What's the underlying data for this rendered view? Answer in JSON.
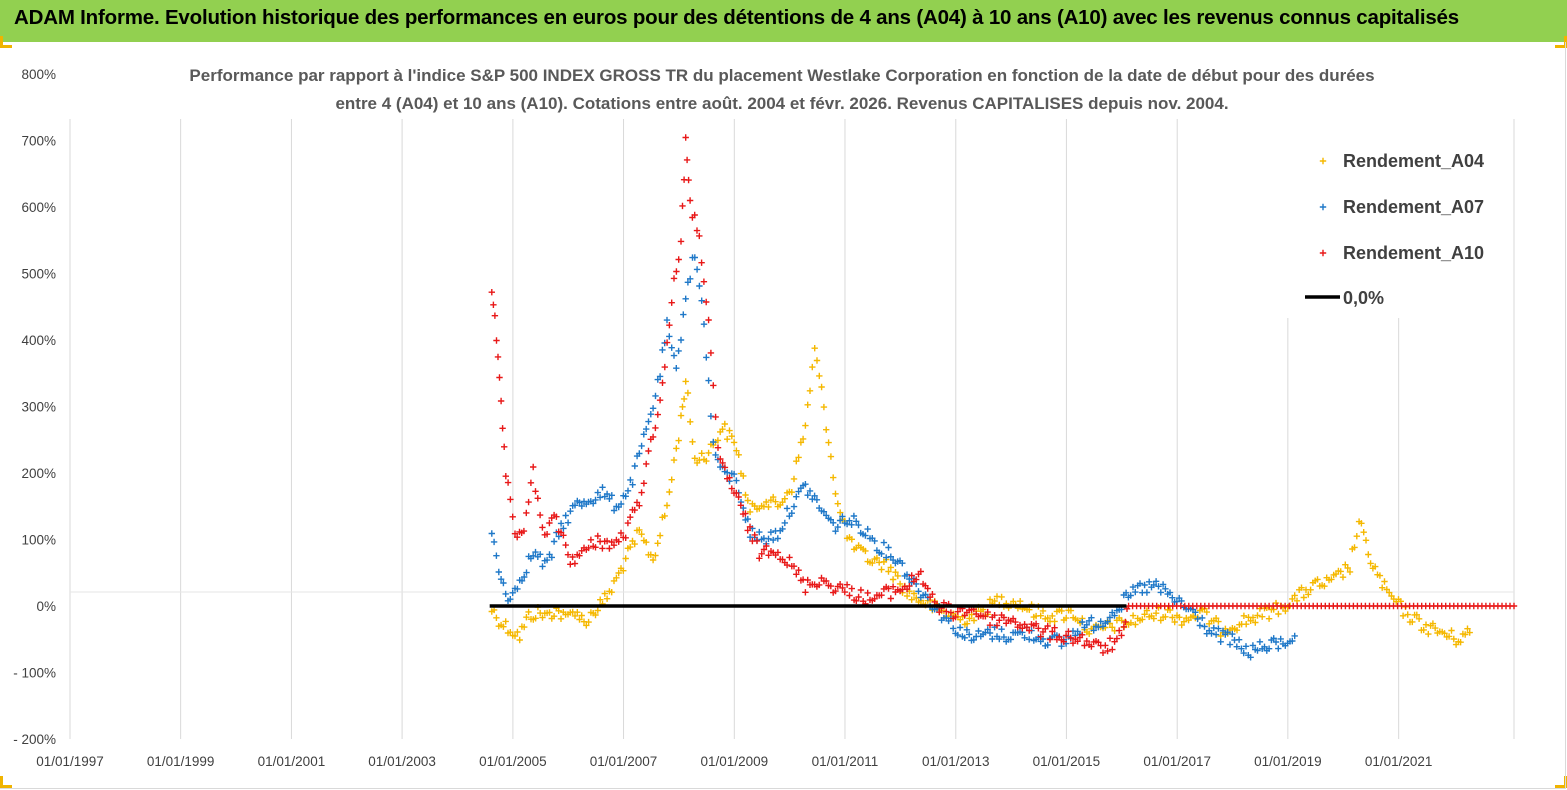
{
  "header": {
    "title": "ADAM Informe. Evolution historique des performances en euros pour des détentions de 4 ans (A04) à 10 ans (A10) avec les revenus connus capitalisés"
  },
  "colors": {
    "banner": "#92d050",
    "corner_marks": "#f0b400",
    "A04": "#f5b800",
    "A07": "#1f78c8",
    "A10": "#e81818",
    "zero_line": "#000000"
  },
  "chart_data": {
    "type": "scatter",
    "title_lines": [
      "Performance par rapport à l'indice S&P 500 INDEX GROSS TR  du placement Westlake Corporation en fonction de la date de début pour des durées",
      "entre 4 (A04) et 10 ans (A10). Cotations entre août. 2004 et févr. 2026. Revenus CAPITALISES depuis nov. 2004."
    ],
    "y_unit": "%",
    "ylim": [
      -200,
      800
    ],
    "y_ticks": [
      "800%",
      "700%",
      "600%",
      "500%",
      "400%",
      "300%",
      "200%",
      "100%",
      "0%",
      "- 100%",
      "- 200%"
    ],
    "y_tick_values": [
      800,
      700,
      600,
      500,
      400,
      300,
      200,
      100,
      0,
      -100,
      -200
    ],
    "xlim": [
      "1997-01-01",
      "2023-02-01"
    ],
    "x_ticks": [
      "01/01/1997",
      "01/01/1999",
      "01/01/2001",
      "01/01/2003",
      "01/01/2005",
      "01/01/2007",
      "01/01/2009",
      "01/01/2011",
      "01/01/2013",
      "01/01/2015",
      "01/01/2017",
      "01/01/2019",
      "01/01/2021"
    ],
    "grid": "vertical",
    "legend_position": "top-right",
    "legend": [
      "Rendement_A04",
      "Rendement_A07",
      "Rendement_A10",
      "0,0%"
    ],
    "series": [
      {
        "name": "Rendement_A04",
        "color": "#f5b800",
        "points": [
          [
            "2004-08-15",
            -5
          ],
          [
            "2004-10-15",
            -25
          ],
          [
            "2004-12-15",
            -35
          ],
          [
            "2005-02-15",
            -45
          ],
          [
            "2005-04-15",
            -15
          ],
          [
            "2005-06-15",
            -10
          ],
          [
            "2005-08-15",
            -15
          ],
          [
            "2005-10-15",
            -5
          ],
          [
            "2005-12-15",
            -20
          ],
          [
            "2006-02-15",
            -5
          ],
          [
            "2006-04-15",
            -25
          ],
          [
            "2006-06-15",
            -10
          ],
          [
            "2006-08-15",
            5
          ],
          [
            "2006-10-15",
            25
          ],
          [
            "2007-01-15",
            70
          ],
          [
            "2007-04-15",
            110
          ],
          [
            "2007-07-15",
            70
          ],
          [
            "2007-10-15",
            150
          ],
          [
            "2008-01-15",
            280
          ],
          [
            "2008-02-15",
            340
          ],
          [
            "2008-04-15",
            220
          ],
          [
            "2008-07-15",
            230
          ],
          [
            "2008-10-15",
            270
          ],
          [
            "2009-01-15",
            240
          ],
          [
            "2009-04-15",
            140
          ],
          [
            "2009-07-15",
            160
          ],
          [
            "2009-10-15",
            150
          ],
          [
            "2010-01-15",
            180
          ],
          [
            "2010-04-15",
            270
          ],
          [
            "2010-06-15",
            385
          ],
          [
            "2010-08-15",
            300
          ],
          [
            "2010-11-15",
            150
          ],
          [
            "2011-02-15",
            90
          ],
          [
            "2011-06-15",
            70
          ],
          [
            "2011-10-15",
            60
          ],
          [
            "2012-02-15",
            20
          ],
          [
            "2012-06-15",
            5
          ],
          [
            "2012-10-15",
            -10
          ],
          [
            "2013-02-15",
            -20
          ],
          [
            "2013-06-15",
            -10
          ],
          [
            "2013-10-15",
            10
          ],
          [
            "2014-02-15",
            5
          ],
          [
            "2014-06-15",
            -10
          ],
          [
            "2014-10-15",
            -15
          ],
          [
            "2015-02-15",
            -10
          ],
          [
            "2015-06-15",
            -40
          ],
          [
            "2015-10-15",
            -30
          ],
          [
            "2016-02-15",
            -25
          ],
          [
            "2016-06-15",
            -15
          ],
          [
            "2016-10-15",
            -10
          ],
          [
            "2017-02-15",
            -20
          ],
          [
            "2017-06-15",
            -10
          ],
          [
            "2017-10-15",
            -35
          ],
          [
            "2018-02-15",
            -25
          ],
          [
            "2018-06-15",
            -15
          ],
          [
            "2018-10-15",
            -5
          ],
          [
            "2019-02-15",
            10
          ],
          [
            "2019-06-15",
            30
          ],
          [
            "2019-10-15",
            35
          ],
          [
            "2020-02-15",
            60
          ],
          [
            "2020-04-15",
            125
          ],
          [
            "2020-07-15",
            60
          ],
          [
            "2020-10-15",
            20
          ],
          [
            "2021-02-15",
            -10
          ],
          [
            "2021-06-15",
            -30
          ],
          [
            "2021-10-15",
            -40
          ],
          [
            "2022-01-15",
            -50
          ],
          [
            "2022-04-15",
            -40
          ]
        ]
      },
      {
        "name": "Rendement_A07",
        "color": "#1f78c8",
        "points": [
          [
            "2004-08-15",
            110
          ],
          [
            "2004-10-15",
            40
          ],
          [
            "2004-12-15",
            10
          ],
          [
            "2005-02-15",
            40
          ],
          [
            "2005-05-15",
            80
          ],
          [
            "2005-08-15",
            60
          ],
          [
            "2005-11-15",
            120
          ],
          [
            "2006-02-15",
            150
          ],
          [
            "2006-05-15",
            160
          ],
          [
            "2006-08-15",
            170
          ],
          [
            "2006-11-15",
            150
          ],
          [
            "2007-02-15",
            180
          ],
          [
            "2007-05-15",
            250
          ],
          [
            "2007-08-15",
            330
          ],
          [
            "2007-10-15",
            420
          ],
          [
            "2007-12-15",
            350
          ],
          [
            "2008-02-15",
            470
          ],
          [
            "2008-04-15",
            530
          ],
          [
            "2008-06-15",
            430
          ],
          [
            "2008-08-15",
            240
          ],
          [
            "2008-10-15",
            200
          ],
          [
            "2009-01-15",
            190
          ],
          [
            "2009-04-15",
            110
          ],
          [
            "2009-07-15",
            100
          ],
          [
            "2009-10-15",
            110
          ],
          [
            "2010-01-15",
            150
          ],
          [
            "2010-04-15",
            180
          ],
          [
            "2010-07-15",
            150
          ],
          [
            "2010-10-15",
            120
          ],
          [
            "2011-01-15",
            130
          ],
          [
            "2011-04-15",
            120
          ],
          [
            "2011-08-15",
            90
          ],
          [
            "2011-12-15",
            70
          ],
          [
            "2012-04-15",
            30
          ],
          [
            "2012-08-15",
            0
          ],
          [
            "2012-12-15",
            -30
          ],
          [
            "2013-04-15",
            -50
          ],
          [
            "2013-08-15",
            -40
          ],
          [
            "2013-12-15",
            -45
          ],
          [
            "2014-04-15",
            -40
          ],
          [
            "2014-08-15",
            -50
          ],
          [
            "2014-12-15",
            -55
          ],
          [
            "2015-04-15",
            -30
          ],
          [
            "2015-08-15",
            -25
          ],
          [
            "2015-12-15",
            0
          ],
          [
            "2016-04-15",
            25
          ],
          [
            "2016-08-15",
            30
          ],
          [
            "2016-12-15",
            10
          ],
          [
            "2017-04-15",
            -10
          ],
          [
            "2017-08-15",
            -40
          ],
          [
            "2017-12-15",
            -50
          ],
          [
            "2018-04-15",
            -70
          ],
          [
            "2018-08-15",
            -60
          ],
          [
            "2018-12-15",
            -55
          ],
          [
            "2019-02-15",
            -45
          ]
        ]
      },
      {
        "name": "Rendement_A10",
        "color": "#e81818",
        "points": [
          [
            "2004-08-15",
            480
          ],
          [
            "2004-09-15",
            400
          ],
          [
            "2004-10-15",
            300
          ],
          [
            "2004-11-15",
            200
          ],
          [
            "2005-01-15",
            100
          ],
          [
            "2005-03-15",
            120
          ],
          [
            "2005-05-15",
            200
          ],
          [
            "2005-07-15",
            110
          ],
          [
            "2005-10-15",
            130
          ],
          [
            "2006-01-15",
            70
          ],
          [
            "2006-04-15",
            80
          ],
          [
            "2006-07-15",
            100
          ],
          [
            "2006-10-15",
            90
          ],
          [
            "2007-01-15",
            110
          ],
          [
            "2007-04-15",
            160
          ],
          [
            "2007-07-15",
            260
          ],
          [
            "2007-09-15",
            330
          ],
          [
            "2007-11-15",
            460
          ],
          [
            "2008-01-15",
            550
          ],
          [
            "2008-02-15",
            700
          ],
          [
            "2008-03-15",
            600
          ],
          [
            "2008-05-15",
            560
          ],
          [
            "2008-07-15",
            420
          ],
          [
            "2008-09-15",
            230
          ],
          [
            "2008-12-15",
            180
          ],
          [
            "2009-03-15",
            130
          ],
          [
            "2009-06-15",
            80
          ],
          [
            "2009-09-15",
            90
          ],
          [
            "2010-01-15",
            60
          ],
          [
            "2010-04-15",
            30
          ],
          [
            "2010-07-15",
            40
          ],
          [
            "2010-10-15",
            30
          ],
          [
            "2011-02-15",
            20
          ],
          [
            "2011-06-15",
            10
          ],
          [
            "2011-10-15",
            20
          ],
          [
            "2012-02-15",
            30
          ],
          [
            "2012-05-15",
            50
          ],
          [
            "2012-08-15",
            0
          ],
          [
            "2012-12-15",
            -10
          ],
          [
            "2013-04-15",
            -5
          ],
          [
            "2013-08-15",
            -20
          ],
          [
            "2013-12-15",
            -20
          ],
          [
            "2014-04-15",
            -30
          ],
          [
            "2014-08-15",
            -40
          ],
          [
            "2014-12-15",
            -45
          ],
          [
            "2015-04-15",
            -50
          ],
          [
            "2015-08-15",
            -65
          ],
          [
            "2015-11-15",
            -55
          ],
          [
            "2016-01-15",
            -40
          ],
          [
            "2016-02-15",
            0
          ],
          [
            "2023-02-01",
            0
          ]
        ]
      },
      {
        "name": "0,0%",
        "color": "#000000",
        "points": [
          [
            "2004-08-01",
            0
          ],
          [
            "2016-02-01",
            0
          ]
        ]
      }
    ]
  }
}
